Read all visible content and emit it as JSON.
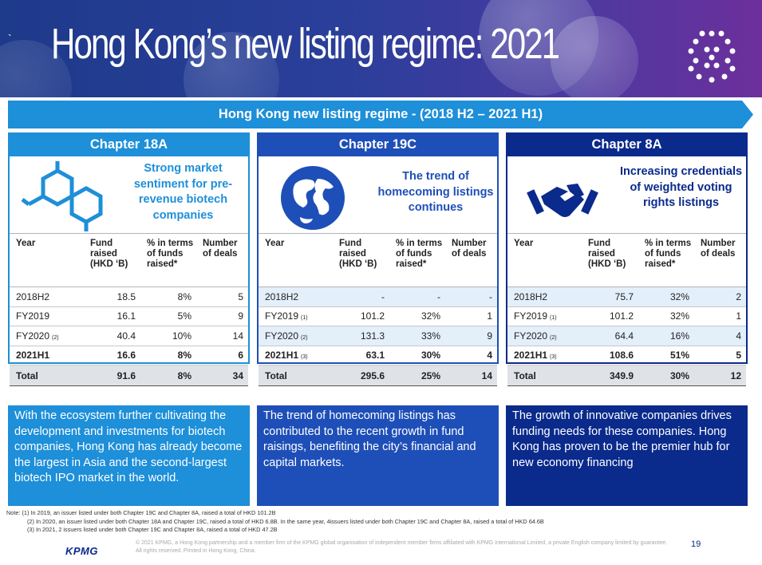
{
  "header": {
    "mark": "`",
    "title": "Hong Kong’s new listing regime: 2021"
  },
  "banner": "Hong Kong new listing regime - (2018 H2 – 2021 H1)",
  "colors": {
    "light_blue": "#1e8fd9",
    "mid_blue": "#1e4fb8",
    "dark_blue": "#0a2a8c",
    "banner_blue": "#1e8fd9"
  },
  "columns": [
    "Year",
    "Fund raised (HKD ‘B)",
    "% in terms of funds raised*",
    "Number of deals"
  ],
  "panels": [
    {
      "title": "Chapter 18A",
      "icon": "molecule-icon",
      "tagline": "Strong market sentiment for pre-revenue biotech companies",
      "rows": [
        {
          "year": "2018H2",
          "note": "",
          "fund": "18.5",
          "pct": "8%",
          "deals": "5"
        },
        {
          "year": "FY2019",
          "note": "",
          "fund": "16.1",
          "pct": "5%",
          "deals": "9"
        },
        {
          "year": "FY2020",
          "note": "(2)",
          "fund": "40.4",
          "pct": "10%",
          "deals": "14"
        },
        {
          "year": "2021H1",
          "note": "",
          "fund": "16.6",
          "pct": "8%",
          "deals": "6"
        }
      ],
      "total": {
        "label": "Total",
        "fund": "91.6",
        "pct": "8%",
        "deals": "34"
      },
      "description": "With the ecosystem further cultivating the development and investments for biotech companies, Hong Kong has already become the largest in Asia and the second-largest biotech IPO market in the world."
    },
    {
      "title": "Chapter 19C",
      "icon": "globe-icon",
      "tagline": "The trend of homecoming listings continues",
      "rows": [
        {
          "year": "2018H2",
          "note": "",
          "fund": "-",
          "pct": "-",
          "deals": "-"
        },
        {
          "year": "FY2019",
          "note": "(1)",
          "fund": "101.2",
          "pct": "32%",
          "deals": "1"
        },
        {
          "year": "FY2020",
          "note": "(2)",
          "fund": "131.3",
          "pct": "33%",
          "deals": "9"
        },
        {
          "year": "2021H1",
          "note": "(3)",
          "fund": "63.1",
          "pct": "30%",
          "deals": "4"
        }
      ],
      "total": {
        "label": "Total",
        "fund": "295.6",
        "pct": "25%",
        "deals": "14"
      },
      "description": "The trend of homecoming listings has contributed to the recent growth in fund raisings, benefiting the city’s financial and capital markets."
    },
    {
      "title": "Chapter 8A",
      "icon": "handshake-icon",
      "tagline": "Increasing credentials of weighted voting rights listings",
      "rows": [
        {
          "year": "2018H2",
          "note": "",
          "fund": "75.7",
          "pct": "32%",
          "deals": "2"
        },
        {
          "year": "FY2019",
          "note": "(1)",
          "fund": "101.2",
          "pct": "32%",
          "deals": "1"
        },
        {
          "year": "FY2020",
          "note": "(2)",
          "fund": "64.4",
          "pct": "16%",
          "deals": "4"
        },
        {
          "year": "2021H1",
          "note": "(3)",
          "fund": "108.6",
          "pct": "51%",
          "deals": "5"
        }
      ],
      "total": {
        "label": "Total",
        "fund": "349.9",
        "pct": "30%",
        "deals": "12"
      },
      "description": "The growth of innovative companies drives funding needs for these companies. Hong Kong has proven to be the premier hub for new economy financing"
    }
  ],
  "notes": [
    "Note: (1) In 2019, an issuer listed under both Chapter 19C and Chapter 8A, raised a total of HKD 101.2B",
    "(2) In 2020, an issuer listed under both Chapter 18A and Chapter 19C, raised a total of HKD 6.8B. In the same year, 4issuers listed under both Chapter 19C and Chapter 8A, raised a total of HKD 64.6B",
    "(3) In 2021, 2 issuers listed under both Chapter 19C and Chapter 8A, raised a total of HKD 47.2B"
  ],
  "footer": {
    "brand": "KPMG",
    "legal": "© 2021 KPMG, a Hong Kong partnership and a member firm of the KPMG global organisation of independent member firms affiliated with KPMG International Limited, a private English company limited by guarantee. All rights reserved. Printed in Hong Kong, China.",
    "page": "19"
  }
}
